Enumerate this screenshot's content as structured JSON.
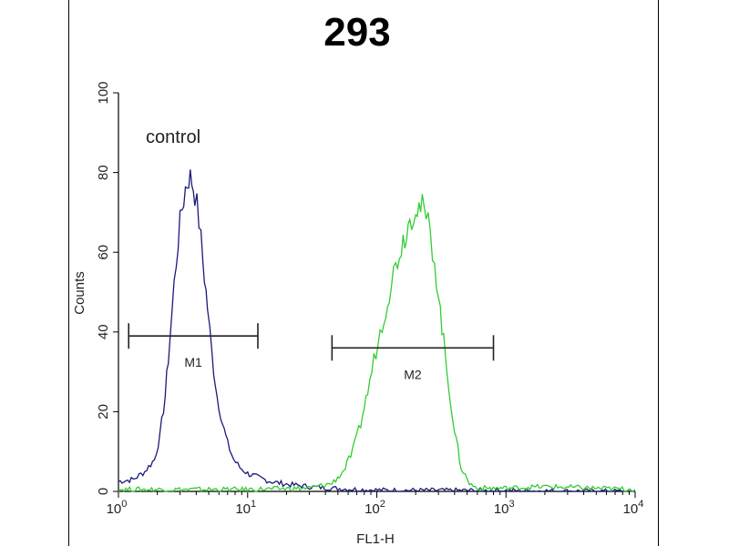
{
  "chart_data": {
    "type": "line",
    "title": "293",
    "xlabel": "FL1-H",
    "ylabel": "Counts",
    "xscale": "log",
    "xlim": [
      1,
      10000
    ],
    "ylim": [
      0,
      100
    ],
    "yticks": [
      0,
      20,
      40,
      60,
      80,
      100
    ],
    "xticks": [
      {
        "value": 1,
        "base": "10",
        "exp": "0"
      },
      {
        "value": 10,
        "base": "10",
        "exp": "1"
      },
      {
        "value": 100,
        "base": "10",
        "exp": "2"
      },
      {
        "value": 1000,
        "base": "10",
        "exp": "3"
      },
      {
        "value": 10000,
        "base": "10",
        "exp": "4"
      }
    ],
    "annotation": "control",
    "grid": false,
    "series": [
      {
        "color": "#1a1a7a",
        "x": [
          1.0,
          1.3,
          1.6,
          1.9,
          2.1,
          2.3,
          2.5,
          2.7,
          2.9,
          3.1,
          3.3,
          3.5,
          3.7,
          3.9,
          4.2,
          4.5,
          4.9,
          5.3,
          5.8,
          6.4,
          7.0,
          7.8,
          8.7,
          10.0,
          12.0,
          15.0,
          20.0,
          30.0,
          45.0,
          70.0,
          120.0,
          1000.0,
          10000.0
        ],
        "y": [
          2.5,
          3.0,
          5.0,
          8.0,
          14.0,
          24.0,
          38.0,
          52.0,
          63.0,
          71.0,
          76.0,
          79.0,
          78.0,
          75.0,
          68.0,
          58.0,
          46.0,
          34.0,
          24.0,
          17.0,
          12.0,
          8.0,
          6.0,
          4.5,
          3.5,
          2.5,
          1.8,
          1.2,
          0.8,
          0.5,
          0.3,
          0.2,
          0.0
        ]
      },
      {
        "color": "#33cc33",
        "x": [
          1.0,
          10.0,
          30.0,
          45.0,
          55.0,
          65.0,
          75.0,
          85.0,
          95.0,
          110.0,
          125.0,
          140.0,
          160.0,
          180.0,
          200.0,
          225.0,
          250.0,
          280.0,
          310.0,
          350.0,
          400.0,
          450.0,
          520.0,
          600.0,
          1000.0,
          2000.0,
          10000.0
        ],
        "y": [
          0.5,
          0.5,
          0.8,
          2.0,
          5.0,
          10.0,
          17.0,
          25.0,
          33.0,
          42.0,
          50.0,
          57.0,
          63.0,
          68.0,
          72.0,
          71.0,
          67.0,
          58.0,
          45.0,
          30.0,
          15.0,
          6.0,
          2.0,
          0.8,
          0.8,
          1.2,
          0.5
        ]
      }
    ],
    "markers": [
      {
        "label": "M1",
        "x_start": 1.2,
        "x_end": 12.0,
        "y": 39
      },
      {
        "label": "M2",
        "x_start": 45.0,
        "x_end": 800.0,
        "y": 36
      }
    ]
  }
}
